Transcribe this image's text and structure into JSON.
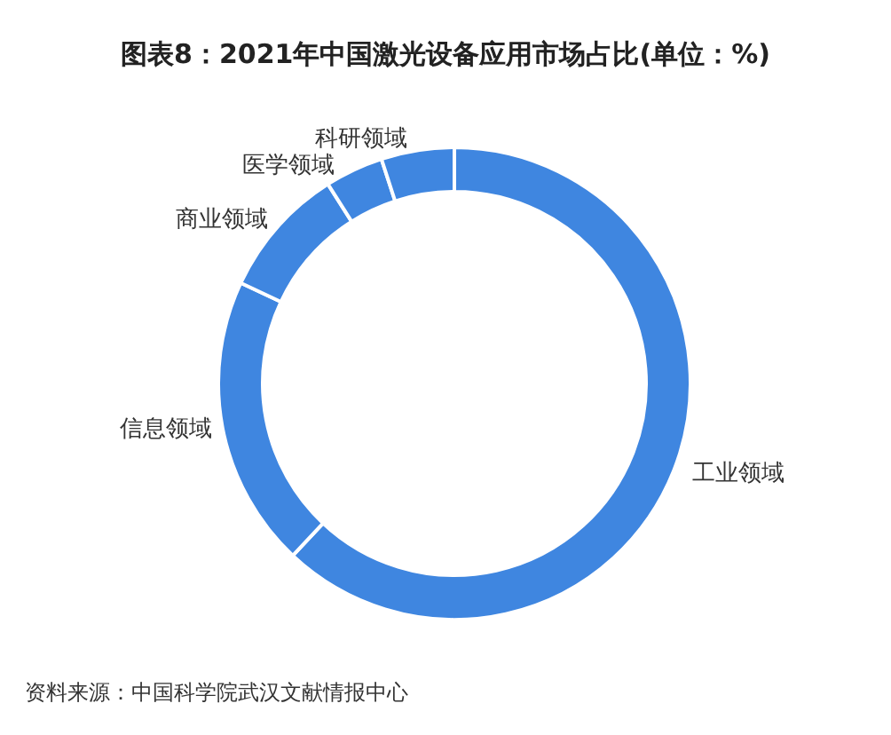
{
  "chart_data": {
    "type": "donut",
    "title": "图表8：2021年中国激光设备应用市场占比(单位：%)",
    "categories": [
      "工业领域",
      "信息领域",
      "商业领域",
      "医学领域",
      "科研领域"
    ],
    "values": [
      62,
      20,
      9,
      4,
      5
    ],
    "colors": [
      "#3f86e0",
      "#3f86e0",
      "#3f86e0",
      "#3f86e0",
      "#3f86e0"
    ],
    "annotations": [
      "资料来源：中国科学院武汉文献情报中心"
    ],
    "legend": false
  }
}
